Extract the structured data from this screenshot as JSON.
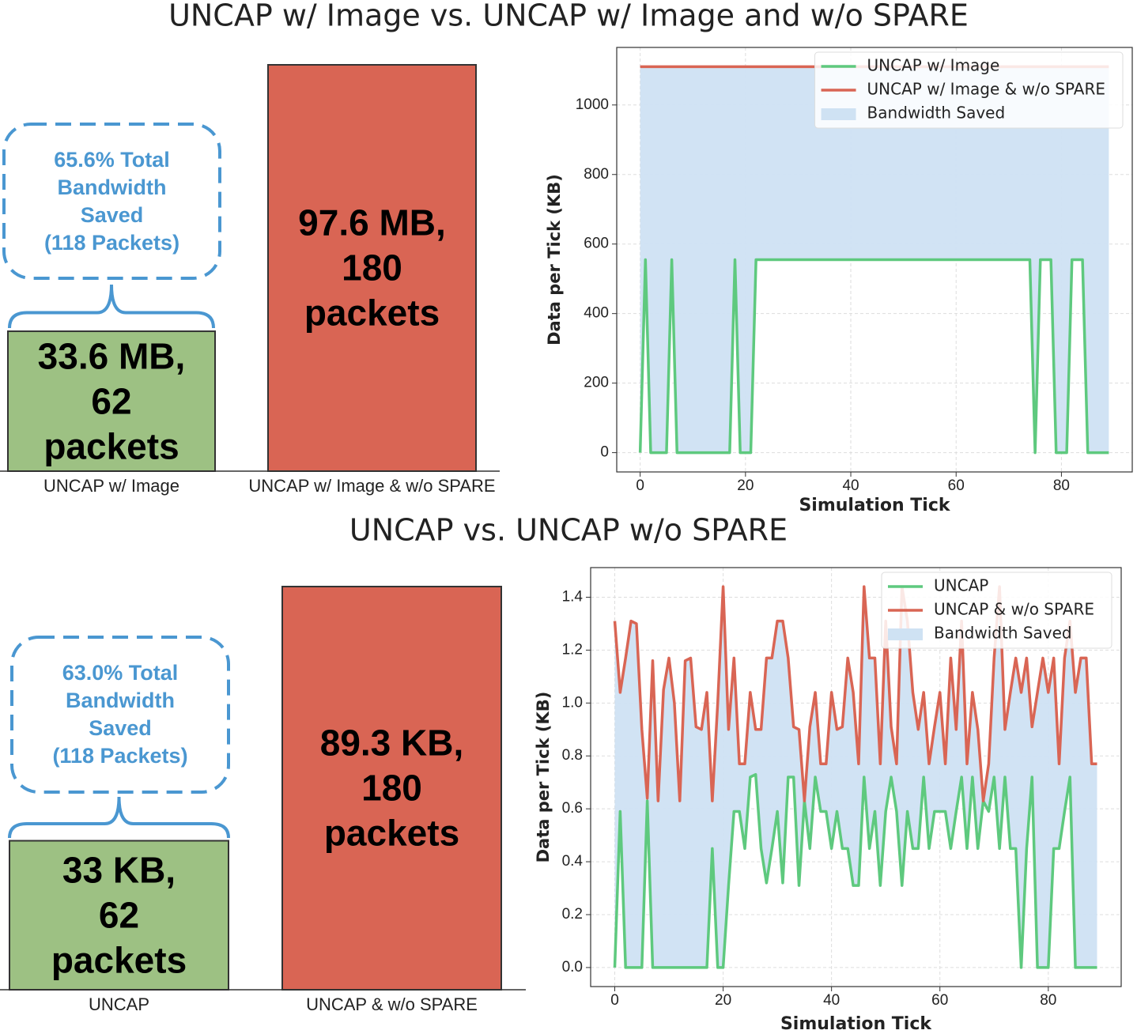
{
  "chart_data": [
    {
      "type": "bar",
      "title": "UNCAP w/ Image vs. UNCAP w/ Image and w/o SPARE",
      "categories": [
        "UNCAP w/ Image",
        "UNCAP w/ Image & w/o SPARE"
      ],
      "values": [
        33.6,
        97.6
      ],
      "value_labels": [
        "33.6 MB,\n62\npackets",
        "97.6 MB,\n180\npackets"
      ],
      "colors": [
        "#9dc183",
        "#d96554"
      ],
      "annotation": "65.6% Total\nBandwidth\nSaved\n(118 Packets)",
      "annotation_color": "#4a97d1"
    },
    {
      "type": "line",
      "xlabel": "Simulation Tick",
      "ylabel": "Data per Tick (KB)",
      "x": [
        0,
        1,
        2,
        3,
        4,
        5,
        6,
        7,
        8,
        9,
        10,
        11,
        12,
        13,
        14,
        15,
        16,
        17,
        18,
        19,
        20,
        21,
        22,
        23,
        24,
        25,
        26,
        27,
        28,
        29,
        30,
        31,
        32,
        33,
        34,
        35,
        36,
        37,
        38,
        39,
        40,
        41,
        42,
        43,
        44,
        45,
        46,
        47,
        48,
        49,
        50,
        51,
        52,
        53,
        54,
        55,
        56,
        57,
        58,
        59,
        60,
        61,
        62,
        63,
        64,
        65,
        66,
        67,
        68,
        69,
        70,
        71,
        72,
        73,
        74,
        75,
        76,
        77,
        78,
        79,
        80,
        81,
        82,
        83,
        84,
        85,
        86,
        87,
        88,
        89
      ],
      "series": [
        {
          "name": "UNCAP w/ Image",
          "color": "#5ec97e",
          "values": [
            0,
            555,
            0,
            0,
            0,
            0,
            555,
            0,
            0,
            0,
            0,
            0,
            0,
            0,
            0,
            0,
            0,
            0,
            555,
            0,
            0,
            0,
            555,
            555,
            555,
            555,
            555,
            555,
            555,
            555,
            555,
            555,
            555,
            555,
            555,
            555,
            555,
            555,
            555,
            555,
            555,
            555,
            555,
            555,
            555,
            555,
            555,
            555,
            555,
            555,
            555,
            555,
            555,
            555,
            555,
            555,
            555,
            555,
            555,
            555,
            555,
            555,
            555,
            555,
            555,
            555,
            555,
            555,
            555,
            555,
            555,
            555,
            555,
            555,
            555,
            0,
            555,
            555,
            555,
            0,
            0,
            0,
            555,
            555,
            555,
            0,
            0,
            0,
            0,
            0
          ]
        },
        {
          "name": "UNCAP w/ Image & w/o SPARE",
          "color": "#d96554",
          "values": [
            1110,
            1110,
            1110,
            1110,
            1110,
            1110,
            1110,
            1110,
            1110,
            1110,
            1110,
            1110,
            1110,
            1110,
            1110,
            1110,
            1110,
            1110,
            1110,
            1110,
            1110,
            1110,
            1110,
            1110,
            1110,
            1110,
            1110,
            1110,
            1110,
            1110,
            1110,
            1110,
            1110,
            1110,
            1110,
            1110,
            1110,
            1110,
            1110,
            1110,
            1110,
            1110,
            1110,
            1110,
            1110,
            1110,
            1110,
            1110,
            1110,
            1110,
            1110,
            1110,
            1110,
            1110,
            1110,
            1110,
            1110,
            1110,
            1110,
            1110,
            1110,
            1110,
            1110,
            1110,
            1110,
            1110,
            1110,
            1110,
            1110,
            1110,
            1110,
            1110,
            1110,
            1110,
            1110,
            1110,
            1110,
            1110,
            1110,
            1110,
            1110,
            1110,
            1110,
            1110,
            1110,
            1110,
            1110,
            1110,
            1110,
            1110
          ]
        }
      ],
      "fill": {
        "name": "Bandwidth Saved",
        "color": "#cfe2f3"
      },
      "xlim": [
        -4.45,
        93.45
      ],
      "ylim": [
        -55.5,
        1165.5
      ],
      "xticks": [
        0,
        20,
        40,
        60,
        80
      ],
      "yticks": [
        0,
        200,
        400,
        600,
        800,
        1000
      ],
      "grid": true,
      "legend": "upper right"
    },
    {
      "type": "bar",
      "title": "UNCAP vs. UNCAP w/o SPARE",
      "categories": [
        "UNCAP",
        "UNCAP & w/o SPARE"
      ],
      "values": [
        33,
        89.3
      ],
      "value_labels": [
        "33 KB,\n62\npackets",
        "89.3 KB,\n180\npackets"
      ],
      "colors": [
        "#9dc183",
        "#d96554"
      ],
      "annotation": "63.0% Total\nBandwidth\nSaved\n(118 Packets)",
      "annotation_color": "#4a97d1"
    },
    {
      "type": "line",
      "xlabel": "Simulation Tick",
      "ylabel": "Data per Tick (KB)",
      "x": [
        0,
        1,
        2,
        3,
        4,
        5,
        6,
        7,
        8,
        9,
        10,
        11,
        12,
        13,
        14,
        15,
        16,
        17,
        18,
        19,
        20,
        21,
        22,
        23,
        24,
        25,
        26,
        27,
        28,
        29,
        30,
        31,
        32,
        33,
        34,
        35,
        36,
        37,
        38,
        39,
        40,
        41,
        42,
        43,
        44,
        45,
        46,
        47,
        48,
        49,
        50,
        51,
        52,
        53,
        54,
        55,
        56,
        57,
        58,
        59,
        60,
        61,
        62,
        63,
        64,
        65,
        66,
        67,
        68,
        69,
        70,
        71,
        72,
        73,
        74,
        75,
        76,
        77,
        78,
        79,
        80,
        81,
        82,
        83,
        84,
        85,
        86,
        87,
        88,
        89
      ],
      "series": [
        {
          "name": "UNCAP",
          "color": "#5ec97e",
          "values": [
            0,
            0.59,
            0,
            0,
            0,
            0,
            0.63,
            0,
            0,
            0,
            0,
            0,
            0,
            0,
            0,
            0,
            0,
            0,
            0.45,
            0,
            0,
            0.31,
            0.59,
            0.59,
            0.45,
            0.72,
            0.73,
            0.45,
            0.32,
            0.45,
            0.59,
            0.32,
            0.72,
            0.72,
            0.31,
            0.63,
            0.45,
            0.72,
            0.59,
            0.59,
            0.45,
            0.59,
            0.45,
            0.45,
            0.31,
            0.31,
            0.72,
            0.45,
            0.59,
            0.31,
            0.59,
            0.72,
            0.59,
            0.31,
            0.59,
            0.45,
            0.45,
            0.72,
            0.45,
            0.59,
            0.59,
            0.59,
            0.45,
            0.59,
            0.72,
            0.45,
            0.72,
            0.45,
            0.63,
            0.59,
            0.72,
            0.45,
            0.72,
            0.45,
            0.45,
            0,
            0.45,
            0.72,
            0,
            0,
            0,
            0.45,
            0.45,
            0.59,
            0.72,
            0,
            0,
            0,
            0,
            0
          ]
        },
        {
          "name": "UNCAP & w/o SPARE",
          "color": "#d96554",
          "values": [
            1.31,
            1.04,
            1.17,
            1.31,
            1.3,
            0.9,
            0.64,
            1.16,
            0.63,
            1.05,
            1.17,
            1.0,
            0.63,
            1.16,
            1.17,
            0.91,
            0.9,
            1.04,
            0.63,
            1.0,
            1.44,
            0.9,
            1.17,
            0.77,
            0.77,
            1.04,
            0.9,
            0.9,
            1.17,
            1.17,
            1.31,
            1.31,
            1.17,
            0.91,
            0.9,
            0.63,
            0.91,
            1.04,
            0.77,
            0.77,
            1.04,
            0.9,
            0.91,
            1.17,
            1.04,
            0.77,
            1.44,
            1.17,
            1.17,
            0.77,
            1.31,
            0.91,
            0.77,
            1.44,
            1.31,
            1.04,
            0.9,
            1.04,
            0.77,
            0.91,
            1.04,
            0.77,
            1.17,
            0.9,
            1.31,
            0.77,
            1.04,
            0.9,
            0.63,
            0.77,
            1.17,
            1.44,
            0.9,
            1.04,
            1.17,
            1.04,
            1.17,
            0.91,
            1.04,
            1.17,
            1.04,
            1.17,
            0.77,
            1.17,
            1.31,
            1.04,
            1.17,
            1.17,
            0.77,
            0.77
          ]
        }
      ],
      "fill": {
        "name": "Bandwidth Saved",
        "color": "#cfe2f3"
      },
      "xlim": [
        -4.45,
        93.45
      ],
      "ylim": [
        -0.072,
        1.512
      ],
      "xticks": [
        0,
        20,
        40,
        60,
        80
      ],
      "yticks": [
        {
          "value": 0,
          "label": "0.0"
        },
        {
          "value": 0.2,
          "label": "0.2"
        },
        {
          "value": 0.4,
          "label": "0.4"
        },
        {
          "value": 0.6,
          "label": "0.6"
        },
        {
          "value": 0.8,
          "label": "0.8"
        },
        {
          "value": 1.0,
          "label": "1.0"
        },
        {
          "value": 1.2,
          "label": "1.2"
        },
        {
          "value": 1.4,
          "label": "1.4"
        }
      ],
      "grid": true,
      "legend": "upper right"
    }
  ]
}
